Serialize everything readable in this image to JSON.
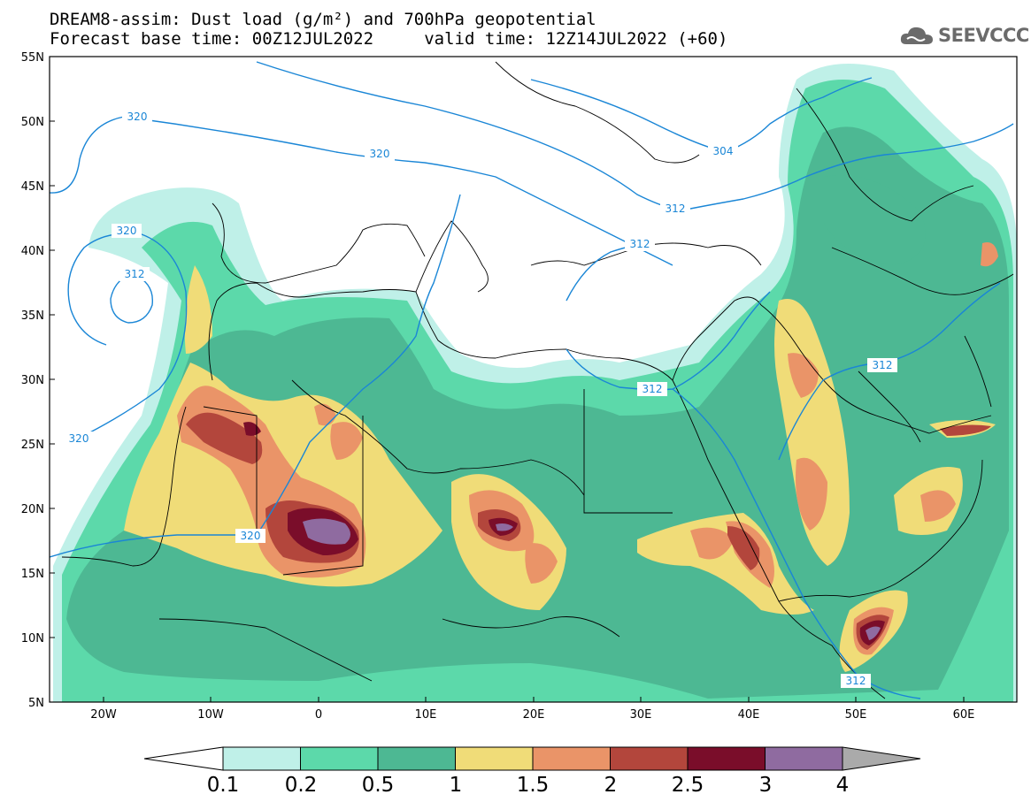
{
  "header": {
    "line1": "DREAM8-assim: Dust load (g/m²) and 700hPa geopotential",
    "line2": "Forecast base time: 00Z12JUL2022     valid time: 12Z14JUL2022 (+60)"
  },
  "logo": {
    "text": "SEEVCCC",
    "icon": "cloud-icon"
  },
  "axes": {
    "lat_labels": [
      "55N",
      "50N",
      "45N",
      "40N",
      "35N",
      "30N",
      "25N",
      "20N",
      "15N",
      "10N",
      "5N"
    ],
    "lon_labels": [
      "20W",
      "10W",
      "0",
      "10E",
      "20E",
      "30E",
      "40E",
      "50E",
      "60E"
    ]
  },
  "contours": {
    "labels": [
      "320",
      "320",
      "320",
      "312",
      "320",
      "304",
      "312",
      "312",
      "312",
      "312",
      "320",
      "312"
    ]
  },
  "colorbar": {
    "tick_labels": [
      "0.1",
      "0.2",
      "0.5",
      "1",
      "1.5",
      "2",
      "2.5",
      "3",
      "4"
    ],
    "colors": [
      "#bff0e8",
      "#5cd9aa",
      "#4db893",
      "#f0dc78",
      "#ea9468",
      "#b3463c",
      "#7a0d2a",
      "#8f6ba0",
      "#aaaaaa"
    ]
  },
  "colors": {
    "contour": "#1a86d6",
    "level1": "#bff0e8",
    "level2": "#5cd9aa",
    "level3": "#4db893",
    "level4": "#f0dc78",
    "level5": "#ea9468",
    "level6": "#b3463c",
    "level7": "#7a0d2a",
    "level8": "#8f6ba0"
  }
}
